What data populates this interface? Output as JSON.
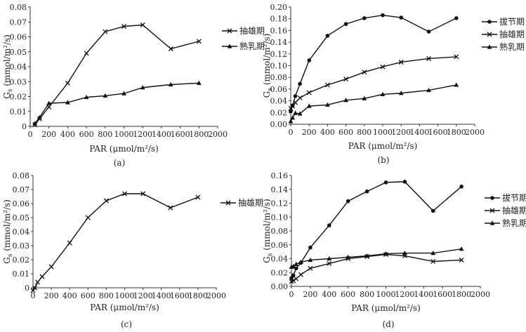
{
  "chart_data": [
    {
      "type": "line",
      "panel_label": "(a)",
      "xlabel": "PAR (μmol/m²/s)",
      "ylabel": "Gs (mmol/m²/s)",
      "ylabel_main": "G",
      "ylabel_sub": "s",
      "ylabel_rest": " (mmol/m²/s)",
      "xlim": [
        0,
        2000
      ],
      "ylim": [
        0,
        0.08
      ],
      "xticks": [
        "0",
        "200",
        "400",
        "600",
        "800",
        "1000",
        "1200",
        "1400",
        "1600",
        "1800",
        "2000"
      ],
      "yticks": [
        "0",
        "0.01",
        "0.02",
        "0.03",
        "0.04",
        "0.05",
        "0.06",
        "0.07",
        "0.08"
      ],
      "xtick_values": [
        0,
        200,
        400,
        600,
        800,
        1000,
        1200,
        1400,
        1600,
        1800,
        2000
      ],
      "ytick_values": [
        0,
        0.01,
        0.02,
        0.03,
        0.04,
        0.05,
        0.06,
        0.07,
        0.08
      ],
      "series": [
        {
          "name": "抽雄期",
          "marker": "x",
          "x": [
            50,
            100,
            200,
            400,
            600,
            800,
            1000,
            1200,
            1500,
            1800
          ],
          "y": [
            0.001,
            0.005,
            0.013,
            0.029,
            0.049,
            0.0635,
            0.067,
            0.068,
            0.052,
            0.057
          ]
        },
        {
          "name": "熟乳期",
          "marker": "triangle",
          "x": [
            50,
            100,
            200,
            400,
            600,
            800,
            1000,
            1200,
            1500,
            1800
          ],
          "y": [
            0.002,
            0.006,
            0.0155,
            0.016,
            0.0195,
            0.0205,
            0.022,
            0.026,
            0.028,
            0.029
          ]
        }
      ]
    },
    {
      "type": "line",
      "panel_label": "(b)",
      "xlabel": "PAR (μmol/m²/s)",
      "ylabel": "Gs (mmol/m²/s)",
      "ylabel_main": "G",
      "ylabel_sub": "s",
      "ylabel_rest": " (mmol/m²/s)",
      "xlim": [
        0,
        2000
      ],
      "ylim": [
        0,
        0.2
      ],
      "xticks": [
        "0",
        "200",
        "400",
        "600",
        "800",
        "1000",
        "1200",
        "1400",
        "1600",
        "1800",
        "2000"
      ],
      "yticks": [
        "0.00",
        "0.02",
        "0.04",
        "0.06",
        "0.08",
        "0.10",
        "0.12",
        "0.14",
        "0.16",
        "0.18",
        "0.20"
      ],
      "xtick_values": [
        0,
        200,
        400,
        600,
        800,
        1000,
        1200,
        1400,
        1600,
        1800,
        2000
      ],
      "ytick_values": [
        0,
        0.02,
        0.04,
        0.06,
        0.08,
        0.1,
        0.12,
        0.14,
        0.16,
        0.18,
        0.2
      ],
      "series": [
        {
          "name": "拔节期",
          "marker": "circle",
          "x": [
            0,
            20,
            50,
            100,
            200,
            400,
            600,
            800,
            1000,
            1200,
            1500,
            1800
          ],
          "y": [
            0.022,
            0.032,
            0.048,
            0.069,
            0.109,
            0.151,
            0.171,
            0.181,
            0.186,
            0.182,
            0.158,
            0.181
          ]
        },
        {
          "name": "抽雄期",
          "marker": "x",
          "x": [
            0,
            20,
            50,
            100,
            200,
            400,
            600,
            800,
            1000,
            1200,
            1500,
            1800
          ],
          "y": [
            0.027,
            0.031,
            0.037,
            0.045,
            0.054,
            0.067,
            0.077,
            0.089,
            0.098,
            0.106,
            0.112,
            0.115
          ]
        },
        {
          "name": "熟乳期",
          "marker": "triangle",
          "x": [
            0,
            20,
            50,
            100,
            200,
            400,
            600,
            800,
            1000,
            1200,
            1500,
            1800
          ],
          "y": [
            0.005,
            0.011,
            0.019,
            0.018,
            0.031,
            0.033,
            0.041,
            0.044,
            0.051,
            0.053,
            0.058,
            0.067
          ]
        }
      ]
    },
    {
      "type": "line",
      "panel_label": "(c)",
      "xlabel": "PAR (μmol/m²/s)",
      "ylabel": "Gs (mmol/m²/s)",
      "ylabel_main": "G",
      "ylabel_sub": "s",
      "ylabel_rest": " (mmol/m²/s)",
      "xlim": [
        0,
        2000
      ],
      "ylim": [
        0,
        0.08
      ],
      "xticks": [
        "0",
        "200",
        "400",
        "600",
        "800",
        "1000",
        "1200",
        "1400",
        "1600",
        "1800",
        "2000"
      ],
      "yticks": [
        "0",
        "0.01",
        "0.02",
        "0.03",
        "0.04",
        "0.05",
        "0.06",
        "0.07",
        "0.08"
      ],
      "xtick_values": [
        0,
        200,
        400,
        600,
        800,
        1000,
        1200,
        1400,
        1600,
        1800,
        2000
      ],
      "ytick_values": [
        0,
        0.01,
        0.02,
        0.03,
        0.04,
        0.05,
        0.06,
        0.07,
        0.08
      ],
      "series": [
        {
          "name": "抽雄期",
          "marker": "x",
          "x": [
            0,
            20,
            50,
            100,
            200,
            400,
            600,
            800,
            1000,
            1200,
            1500,
            1800
          ],
          "y": [
            -0.002,
            0.0,
            0.004,
            0.008,
            0.015,
            0.032,
            0.05,
            0.062,
            0.067,
            0.067,
            0.057,
            0.0645
          ]
        }
      ]
    },
    {
      "type": "line",
      "panel_label": "(d)",
      "xlabel": "PAR (μmol/m²/s)",
      "ylabel": "Gs (mmol/m²/s)",
      "ylabel_main": "G",
      "ylabel_sub": "s",
      "ylabel_rest": " (mmol/m²/s)",
      "xlim": [
        0,
        2000
      ],
      "ylim": [
        0,
        0.16
      ],
      "xticks": [
        "0",
        "200",
        "400",
        "600",
        "800",
        "1000",
        "1200",
        "1400",
        "1600",
        "1800",
        "2000"
      ],
      "yticks": [
        "0.00",
        "0.02",
        "0.04",
        "0.06",
        "0.08",
        "0.10",
        "0.12",
        "0.14",
        "0.16"
      ],
      "xtick_values": [
        0,
        200,
        400,
        600,
        800,
        1000,
        1200,
        1400,
        1600,
        1800,
        2000
      ],
      "ytick_values": [
        0,
        0.02,
        0.04,
        0.06,
        0.08,
        0.1,
        0.12,
        0.14,
        0.16
      ],
      "series": [
        {
          "name": "拔节期",
          "marker": "circle",
          "x": [
            0,
            20,
            50,
            100,
            200,
            400,
            600,
            800,
            1000,
            1200,
            1500,
            1800
          ],
          "y": [
            0.012,
            0.016,
            0.026,
            0.034,
            0.056,
            0.088,
            0.123,
            0.137,
            0.15,
            0.151,
            0.109,
            0.144
          ]
        },
        {
          "name": "抽雄期",
          "marker": "x",
          "x": [
            0,
            20,
            50,
            100,
            200,
            400,
            600,
            800,
            1000,
            1200,
            1500,
            1800
          ],
          "y": [
            0.007,
            0.008,
            0.011,
            0.017,
            0.026,
            0.033,
            0.04,
            0.043,
            0.046,
            0.044,
            0.036,
            0.038
          ]
        },
        {
          "name": "熟乳期",
          "marker": "triangle",
          "x": [
            0,
            20,
            50,
            100,
            200,
            400,
            600,
            800,
            1000,
            1200,
            1500,
            1800
          ],
          "y": [
            0.028,
            0.029,
            0.032,
            0.035,
            0.038,
            0.04,
            0.042,
            0.044,
            0.047,
            0.048,
            0.048,
            0.054
          ]
        }
      ]
    }
  ]
}
